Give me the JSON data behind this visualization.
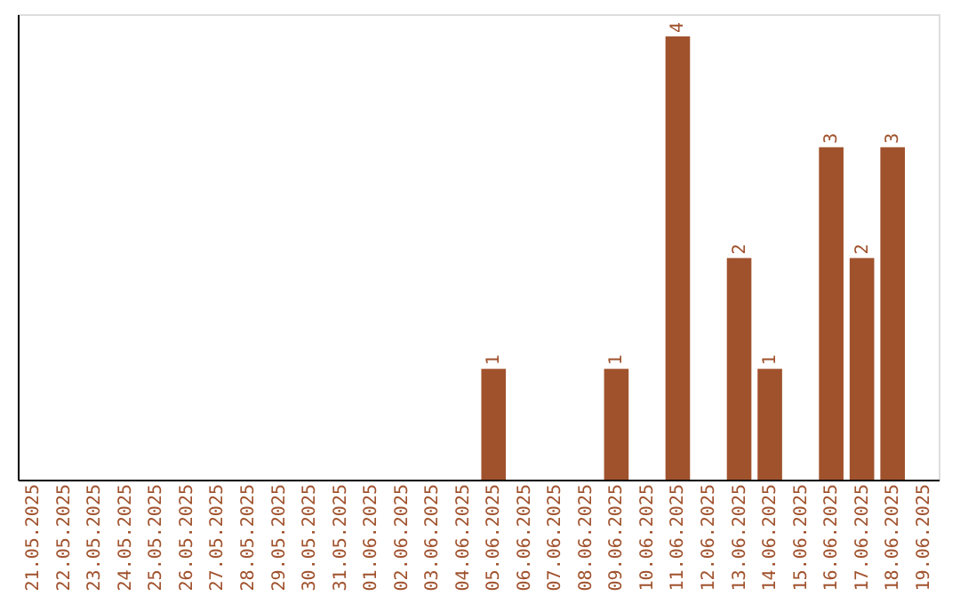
{
  "chart_data": {
    "type": "bar",
    "categories": [
      "21.05.2025",
      "22.05.2025",
      "23.05.2025",
      "24.05.2025",
      "25.05.2025",
      "26.05.2025",
      "27.05.2025",
      "28.05.2025",
      "29.05.2025",
      "30.05.2025",
      "31.05.2025",
      "01.06.2025",
      "02.06.2025",
      "03.06.2025",
      "04.06.2025",
      "05.06.2025",
      "06.06.2025",
      "07.06.2025",
      "08.06.2025",
      "09.06.2025",
      "10.06.2025",
      "11.06.2025",
      "12.06.2025",
      "13.06.2025",
      "14.06.2025",
      "15.06.2025",
      "16.06.2025",
      "17.06.2025",
      "18.06.2025",
      "19.06.2025"
    ],
    "values": [
      null,
      null,
      null,
      null,
      null,
      null,
      null,
      null,
      null,
      null,
      null,
      null,
      null,
      null,
      null,
      1,
      null,
      null,
      null,
      1,
      null,
      4,
      null,
      2,
      1,
      null,
      3,
      2,
      3,
      null
    ],
    "data_labels": true,
    "color": "#a0522d",
    "ylim": [
      0,
      4.2
    ],
    "tick_labels": "x",
    "grid": false
  }
}
